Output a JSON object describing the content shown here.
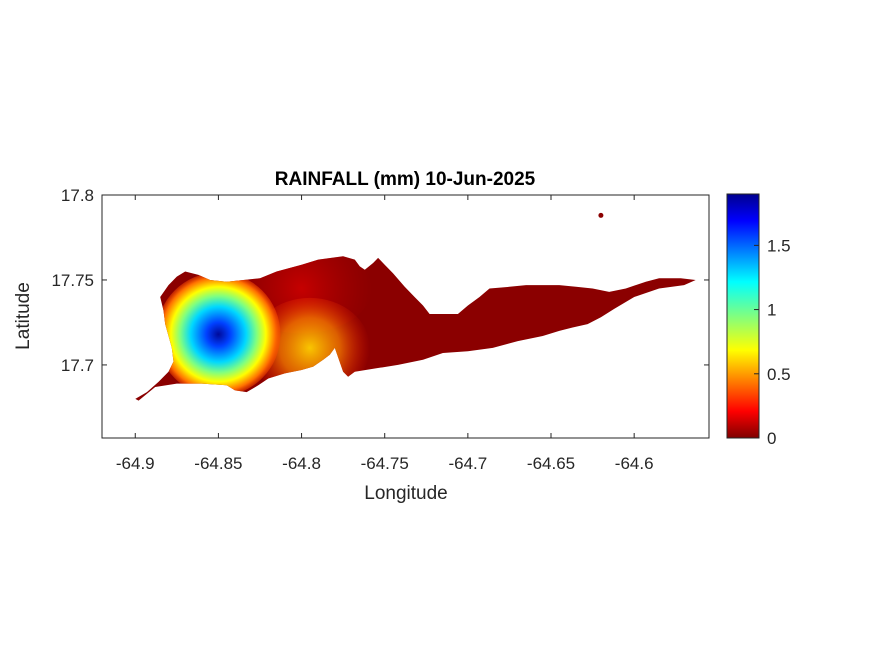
{
  "chart_data": {
    "type": "heatmap",
    "title": "RAINFALL (mm) 10-Jun-2025",
    "xlabel": "Longitude",
    "ylabel": "Latitude",
    "xlim": [
      -64.92,
      -64.555
    ],
    "ylim": [
      17.657,
      17.8
    ],
    "xticks": [
      -64.9,
      -64.85,
      -64.8,
      -64.75,
      -64.7,
      -64.65,
      -64.6
    ],
    "xtick_labels": [
      "-64.9",
      "-64.85",
      "-64.8",
      "-64.75",
      "-64.7",
      "-64.65",
      "-64.6"
    ],
    "yticks": [
      17.7,
      17.75,
      17.8
    ],
    "ytick_labels": [
      "17.7",
      "17.75",
      "17.8"
    ],
    "colorbar": {
      "colormap": "jet",
      "range": [
        0,
        1.9
      ],
      "ticks": [
        0,
        0.5,
        1,
        1.5
      ],
      "tick_labels": [
        "0",
        "0.5",
        "1",
        "1.5"
      ]
    },
    "grid": false,
    "rainfall_peak": {
      "lon": -64.85,
      "lat": 17.718,
      "value": 1.9
    },
    "rainfall_secondary": [
      {
        "lon": -64.795,
        "lat": 17.71,
        "value": 0.75
      },
      {
        "lon": -64.8,
        "lat": 17.745,
        "value": 0.1
      }
    ],
    "island_outline": [
      [
        -64.9,
        17.68
      ],
      [
        -64.893,
        17.684
      ],
      [
        -64.886,
        17.69
      ],
      [
        -64.88,
        17.696
      ],
      [
        -64.877,
        17.702
      ],
      [
        -64.878,
        17.71
      ],
      [
        -64.88,
        17.717
      ],
      [
        -64.882,
        17.724
      ],
      [
        -64.883,
        17.732
      ],
      [
        -64.885,
        17.74
      ],
      [
        -64.88,
        17.747
      ],
      [
        -64.875,
        17.752
      ],
      [
        -64.87,
        17.755
      ],
      [
        -64.862,
        17.753
      ],
      [
        -64.855,
        17.75
      ],
      [
        -64.845,
        17.749
      ],
      [
        -64.835,
        17.75
      ],
      [
        -64.825,
        17.751
      ],
      [
        -64.815,
        17.755
      ],
      [
        -64.8,
        17.759
      ],
      [
        -64.79,
        17.762
      ],
      [
        -64.775,
        17.764
      ],
      [
        -64.768,
        17.762
      ],
      [
        -64.765,
        17.758
      ],
      [
        -64.762,
        17.756
      ],
      [
        -64.757,
        17.76
      ],
      [
        -64.754,
        17.763
      ],
      [
        -64.75,
        17.759
      ],
      [
        -64.745,
        17.754
      ],
      [
        -64.738,
        17.746
      ],
      [
        -64.732,
        17.74
      ],
      [
        -64.727,
        17.735
      ],
      [
        -64.723,
        17.73
      ],
      [
        -64.715,
        17.73
      ],
      [
        -64.706,
        17.73
      ],
      [
        -64.7,
        17.735
      ],
      [
        -64.693,
        17.74
      ],
      [
        -64.687,
        17.745
      ],
      [
        -64.675,
        17.746
      ],
      [
        -64.665,
        17.747
      ],
      [
        -64.655,
        17.747
      ],
      [
        -64.645,
        17.747
      ],
      [
        -64.635,
        17.746
      ],
      [
        -64.625,
        17.745
      ],
      [
        -64.615,
        17.743
      ],
      [
        -64.605,
        17.745
      ],
      [
        -64.593,
        17.749
      ],
      [
        -64.585,
        17.751
      ],
      [
        -64.572,
        17.751
      ],
      [
        -64.563,
        17.75
      ],
      [
        -64.57,
        17.747
      ],
      [
        -64.585,
        17.745
      ],
      [
        -64.6,
        17.74
      ],
      [
        -64.612,
        17.733
      ],
      [
        -64.62,
        17.728
      ],
      [
        -64.628,
        17.724
      ],
      [
        -64.637,
        17.722
      ],
      [
        -64.645,
        17.72
      ],
      [
        -64.655,
        17.717
      ],
      [
        -64.67,
        17.714
      ],
      [
        -64.685,
        17.71
      ],
      [
        -64.7,
        17.708
      ],
      [
        -64.715,
        17.707
      ],
      [
        -64.727,
        17.703
      ],
      [
        -64.742,
        17.7
      ],
      [
        -64.755,
        17.698
      ],
      [
        -64.768,
        17.696
      ],
      [
        -64.772,
        17.693
      ],
      [
        -64.775,
        17.696
      ],
      [
        -64.78,
        17.71
      ],
      [
        -64.783,
        17.706
      ],
      [
        -64.787,
        17.703
      ],
      [
        -64.793,
        17.699
      ],
      [
        -64.8,
        17.697
      ],
      [
        -64.81,
        17.695
      ],
      [
        -64.82,
        17.692
      ],
      [
        -64.826,
        17.688
      ],
      [
        -64.833,
        17.684
      ],
      [
        -64.84,
        17.685
      ],
      [
        -64.845,
        17.688
      ],
      [
        -64.86,
        17.689
      ],
      [
        -64.875,
        17.689
      ],
      [
        -64.888,
        17.687
      ],
      [
        -64.898,
        17.679
      ]
    ],
    "islet": [
      -64.62,
      17.788
    ]
  }
}
